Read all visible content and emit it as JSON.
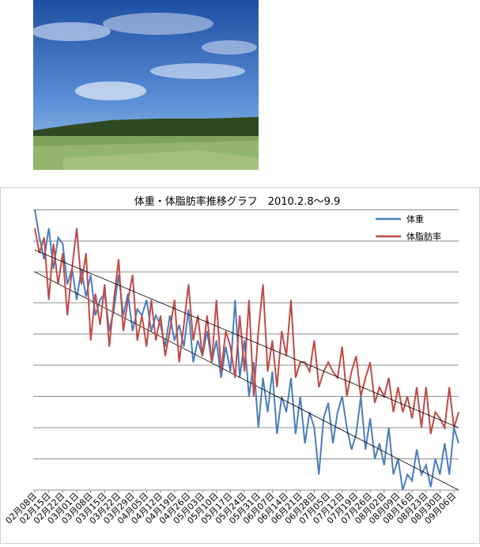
{
  "chart_data": {
    "type": "line",
    "title": "体重・体脂肪率推移グラフ　2010.2.8〜9.9",
    "categories": [
      "02月08日",
      null,
      null,
      "02月15日",
      null,
      null,
      "02月22日",
      null,
      null,
      "03月01日",
      null,
      null,
      "03月08日",
      null,
      null,
      "03月15日",
      null,
      null,
      "03月22日",
      null,
      null,
      "03月29日",
      null,
      null,
      "04月05日",
      null,
      null,
      "04月12日",
      null,
      null,
      "04月19日",
      null,
      null,
      "04月26日",
      null,
      null,
      "05月03日",
      null,
      null,
      "05月10日",
      null,
      null,
      "05月17日",
      null,
      null,
      "05月24日",
      null,
      null,
      "05月31日",
      null,
      null,
      "06月07日",
      null,
      null,
      "06月14日",
      null,
      null,
      "06月21日",
      null,
      null,
      "06月28日",
      null,
      null,
      "07月05日",
      null,
      null,
      "07月12日",
      null,
      null,
      "07月19日",
      null,
      null,
      "07月26日",
      null,
      null,
      "08月02日",
      null,
      null,
      "08月09日",
      null,
      null,
      "08月16日",
      null,
      null,
      "08月23日",
      null,
      null,
      "08月30日",
      null,
      null,
      "09月06日",
      null
    ],
    "ylim": [
      0,
      9
    ],
    "series": [
      {
        "name": "体重",
        "color": "#4a7ebb",
        "trend": [
          7.0,
          0
        ],
        "values": [
          9,
          8.1,
          7.4,
          8.4,
          7.1,
          8.1,
          7.9,
          6.6,
          7.1,
          6.1,
          7.1,
          6.2,
          6.9,
          5.6,
          6.1,
          6.3,
          5.1,
          5.8,
          6.9,
          5.6,
          6.3,
          5.1,
          5.8,
          5.6,
          6.1,
          5.1,
          5.6,
          5.3,
          4.6,
          5.6,
          4.8,
          5.3,
          4.6,
          5.8,
          4.1,
          4.8,
          4.3,
          5.1,
          4.1,
          4.8,
          3.6,
          4.6,
          3.8,
          6.1,
          3.6,
          4.8,
          3.0,
          4.1,
          2.0,
          3.6,
          2.5,
          3.8,
          1.8,
          3.0,
          2.5,
          3.6,
          1.8,
          3.0,
          1.5,
          2.5,
          2.0,
          0.5,
          2.3,
          2.8,
          1.5,
          2.5,
          3.0,
          2.0,
          1.3,
          1.8,
          3.0,
          1.3,
          2.3,
          1.0,
          1.5,
          0.8,
          2.0,
          0.5,
          1.0,
          0,
          0.5,
          0.3,
          1.3,
          0.5,
          0.8,
          0.1,
          1.0,
          0.5,
          1.5,
          0.5,
          2.0,
          1.5
        ]
      },
      {
        "name": "体脂肪率",
        "color": "#be4b48",
        "trend": [
          7.7,
          2.0
        ],
        "values": [
          8.4,
          7.6,
          8.1,
          6.1,
          7.9,
          6.6,
          7.6,
          5.6,
          7.1,
          8.4,
          6.6,
          7.6,
          4.8,
          6.3,
          5.3,
          6.6,
          4.6,
          6.1,
          7.4,
          5.1,
          6.1,
          6.9,
          4.8,
          5.6,
          4.6,
          6.1,
          4.8,
          5.6,
          4.3,
          5.1,
          6.1,
          4.1,
          5.3,
          6.6,
          4.8,
          5.6,
          4.3,
          5.6,
          4.1,
          6.1,
          3.8,
          5.1,
          4.6,
          3.6,
          5.6,
          3.8,
          6.1,
          3.0,
          5.1,
          6.6,
          3.8,
          4.8,
          3.3,
          5.1,
          4.3,
          6.1,
          3.6,
          4.1,
          4.1,
          3.8,
          4.8,
          3.3,
          3.8,
          4.1,
          3.8,
          3.6,
          4.6,
          3.0,
          3.8,
          4.3,
          3.0,
          3.6,
          4.1,
          2.8,
          3.3,
          3.0,
          3.6,
          2.5,
          3.3,
          2.5,
          3.0,
          2.3,
          3.3,
          2.0,
          3.3,
          1.8,
          2.5,
          2.3,
          2.0,
          3.3,
          2.0,
          2.5
        ]
      }
    ]
  }
}
